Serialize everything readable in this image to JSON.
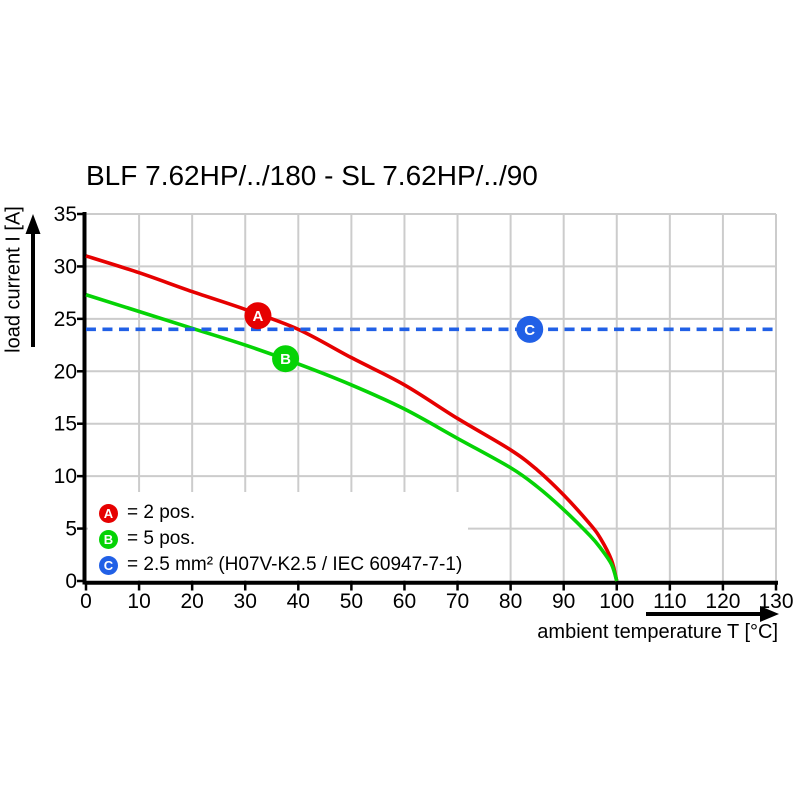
{
  "title": "BLF 7.62HP/../180 - SL 7.62HP/../90",
  "axes": {
    "x": {
      "label": "ambient temperature T [°C]",
      "min": 0,
      "max": 130,
      "step": 10
    },
    "y": {
      "label": "load current I [A]",
      "min": 0,
      "max": 35,
      "step": 5
    }
  },
  "colors": {
    "red": "#e60000",
    "green": "#05d305",
    "blue": "#2160e6",
    "grid": "#cccccc",
    "axis": "#000000",
    "text": "#000000"
  },
  "legend": [
    {
      "letter": "A",
      "color": "#e60000",
      "label": "= 2 pos."
    },
    {
      "letter": "B",
      "color": "#05d305",
      "label": "= 5 pos."
    },
    {
      "letter": "C",
      "color": "#2160e6",
      "label": "= 2.5 mm² (H07V-K2.5 / IEC 60947-7-1)"
    }
  ],
  "markers": [
    {
      "letter": "A",
      "color": "#e60000",
      "T": 32.4,
      "I": 25.3
    },
    {
      "letter": "B",
      "color": "#05d305",
      "T": 37.6,
      "I": 21.2
    },
    {
      "letter": "C",
      "color": "#2160e6",
      "T": 83.6,
      "I": 24
    }
  ],
  "chart_data": {
    "type": "line",
    "title": "BLF 7.62HP/../180 - SL 7.62HP/../90",
    "xlabel": "ambient temperature T [°C]",
    "ylabel": "load current I [A]",
    "xlim": [
      0,
      130
    ],
    "ylim": [
      0,
      35
    ],
    "grid": true,
    "legend_position": "lower-left",
    "series": [
      {
        "name": "A = 2 pos.",
        "color": "#e60000",
        "style": "solid",
        "points": [
          [
            0,
            31
          ],
          [
            10,
            29.4
          ],
          [
            20,
            27.6
          ],
          [
            30,
            25.9
          ],
          [
            40,
            24.0
          ],
          [
            50,
            21.3
          ],
          [
            60,
            18.7
          ],
          [
            70,
            15.5
          ],
          [
            80,
            12.5
          ],
          [
            85,
            10.6
          ],
          [
            90,
            8.2
          ],
          [
            95,
            5.4
          ],
          [
            97,
            4.0
          ],
          [
            99,
            2.0
          ],
          [
            100,
            0
          ]
        ]
      },
      {
        "name": "B = 5 pos.",
        "color": "#05d305",
        "style": "solid",
        "points": [
          [
            0,
            27.3
          ],
          [
            10,
            25.7
          ],
          [
            20,
            24.1
          ],
          [
            30,
            22.5
          ],
          [
            40,
            20.7
          ],
          [
            50,
            18.7
          ],
          [
            60,
            16.4
          ],
          [
            70,
            13.6
          ],
          [
            80,
            10.8
          ],
          [
            85,
            9.0
          ],
          [
            90,
            6.8
          ],
          [
            95,
            4.3
          ],
          [
            97,
            3.1
          ],
          [
            99,
            1.6
          ],
          [
            100,
            0
          ]
        ]
      },
      {
        "name": "C = 2.5 mm² (H07V-K2.5 / IEC 60947-7-1)",
        "color": "#2160e6",
        "style": "dashed",
        "points": [
          [
            0,
            24
          ],
          [
            130,
            24
          ]
        ]
      }
    ]
  }
}
